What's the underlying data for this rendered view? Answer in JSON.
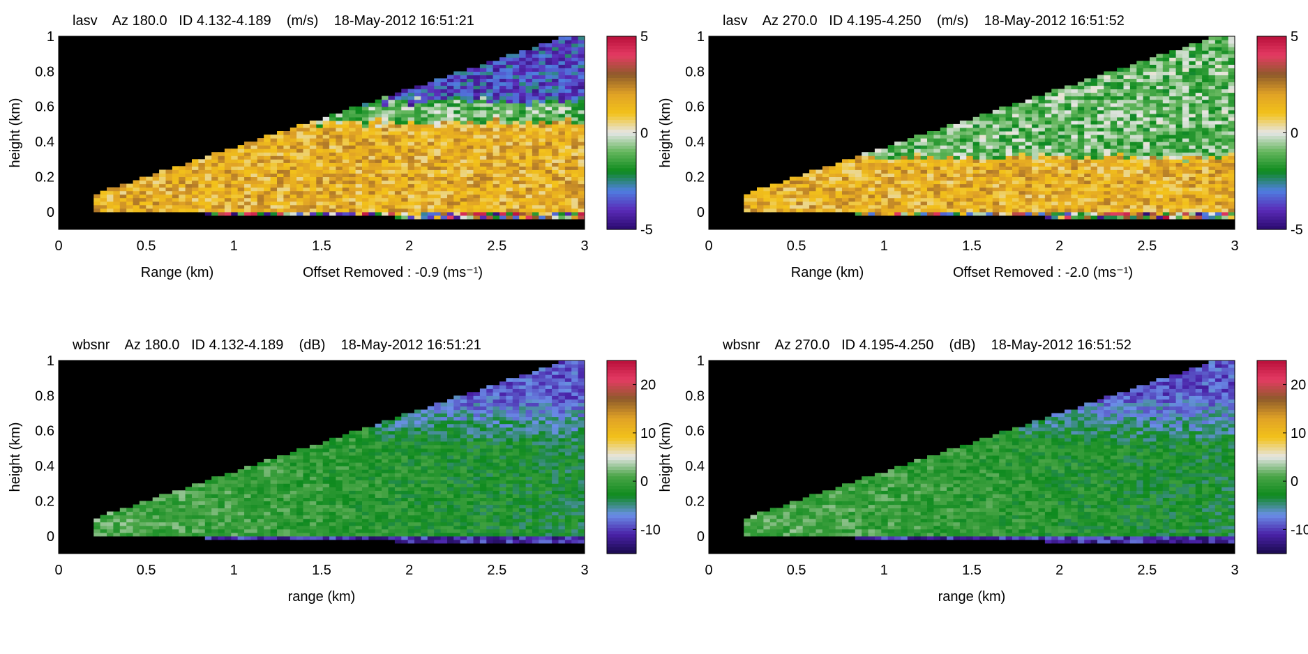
{
  "chart_data": [
    {
      "type": "heatmap",
      "title": "lasv    Az 180.0   ID 4.132-4.189    (m/s)    18-May-2012 16:51:21",
      "xlabel": "Range (km)",
      "ylabel": "height (km)",
      "note": "Offset Removed : -0.9 (ms⁻¹)",
      "xlim": [
        0,
        3
      ],
      "ylim": [
        -0.1,
        1
      ],
      "xticks": [
        "0",
        "0.5",
        "1",
        "1.5",
        "2",
        "2.5",
        "3"
      ],
      "yticks": [
        "0",
        "0.2",
        "0.4",
        "0.6",
        "0.8",
        "1"
      ],
      "colorbar": {
        "min": -5,
        "max": 5,
        "ticks": [
          "5",
          "0",
          "-5"
        ],
        "colormap": "velocity"
      },
      "scan": {
        "range_start_km": 0.2,
        "top_height_at_3km": 1.0
      },
      "layers": [
        {
          "from_height_km": 0.0,
          "value": 1.5
        },
        {
          "from_height_km": 0.5,
          "value": -1.0
        },
        {
          "from_height_km": 0.62,
          "value": -3.5
        }
      ]
    },
    {
      "type": "heatmap",
      "title": "lasv    Az 270.0   ID 4.195-4.250    (m/s)    18-May-2012 16:51:52",
      "xlabel": "Range (km)",
      "ylabel": "height (km)",
      "note": "Offset Removed : -2.0 (ms⁻¹)",
      "xlim": [
        0,
        3
      ],
      "ylim": [
        -0.1,
        1
      ],
      "xticks": [
        "0",
        "0.5",
        "1",
        "1.5",
        "2",
        "2.5",
        "3"
      ],
      "yticks": [
        "0",
        "0.2",
        "0.4",
        "0.6",
        "0.8",
        "1"
      ],
      "colorbar": {
        "min": -5,
        "max": 5,
        "ticks": [
          "5",
          "0",
          "-5"
        ],
        "colormap": "velocity"
      },
      "scan": {
        "range_start_km": 0.2,
        "top_height_at_3km": 1.0
      },
      "layers": [
        {
          "from_height_km": 0.0,
          "value": 1.5
        },
        {
          "from_height_km": 0.3,
          "value": -1.0
        }
      ]
    },
    {
      "type": "heatmap",
      "title": "wbsnr    Az 180.0   ID 4.132-4.189    (dB)    18-May-2012 16:51:21",
      "xlabel": "range (km)",
      "ylabel": "height (km)",
      "xlim": [
        0,
        3
      ],
      "ylim": [
        -0.1,
        1
      ],
      "xticks": [
        "0",
        "0.5",
        "1",
        "1.5",
        "2",
        "2.5",
        "3"
      ],
      "yticks": [
        "0",
        "0.2",
        "0.4",
        "0.6",
        "0.8",
        "1"
      ],
      "colorbar": {
        "min": -15,
        "max": 25,
        "ticks": [
          "20",
          "10",
          "0",
          "-10"
        ],
        "colormap": "snr"
      },
      "scan": {
        "range_start_km": 0.2,
        "top_height_at_3km": 1.0
      },
      "snr_profile": {
        "near_range_db": 1,
        "far_range_db": -3,
        "high_altitude_db": -9
      }
    },
    {
      "type": "heatmap",
      "title": "wbsnr    Az 270.0   ID 4.195-4.250    (dB)    18-May-2012 16:51:52",
      "xlabel": "range (km)",
      "ylabel": "height (km)",
      "xlim": [
        0,
        3
      ],
      "ylim": [
        -0.1,
        1
      ],
      "xticks": [
        "0",
        "0.5",
        "1",
        "1.5",
        "2",
        "2.5",
        "3"
      ],
      "yticks": [
        "0",
        "0.2",
        "0.4",
        "0.6",
        "0.8",
        "1"
      ],
      "colorbar": {
        "min": -15,
        "max": 25,
        "ticks": [
          "20",
          "10",
          "0",
          "-10"
        ],
        "colormap": "snr"
      },
      "scan": {
        "range_start_km": 0.2,
        "top_height_at_3km": 1.0
      },
      "snr_profile": {
        "near_range_db": 1,
        "far_range_db": -3,
        "high_altitude_db": -9
      }
    }
  ],
  "colormaps": {
    "velocity": [
      "#2a0a6e",
      "#5a2bb8",
      "#4f7fe0",
      "#0e8a1e",
      "#63b65c",
      "#e6e6e6",
      "#f3c21a",
      "#e0a226",
      "#8e5b2a",
      "#e43b63",
      "#b80f3a"
    ],
    "snr": [
      "#1a0a4e",
      "#4a22a8",
      "#6b8fe8",
      "#0e8a1e",
      "#4aa547",
      "#e6e6e6",
      "#f3c21a",
      "#e0a226",
      "#8e5b2a",
      "#e43b63",
      "#b80f3a"
    ]
  },
  "colors": {
    "background": "#000000",
    "axis": "#000000"
  }
}
